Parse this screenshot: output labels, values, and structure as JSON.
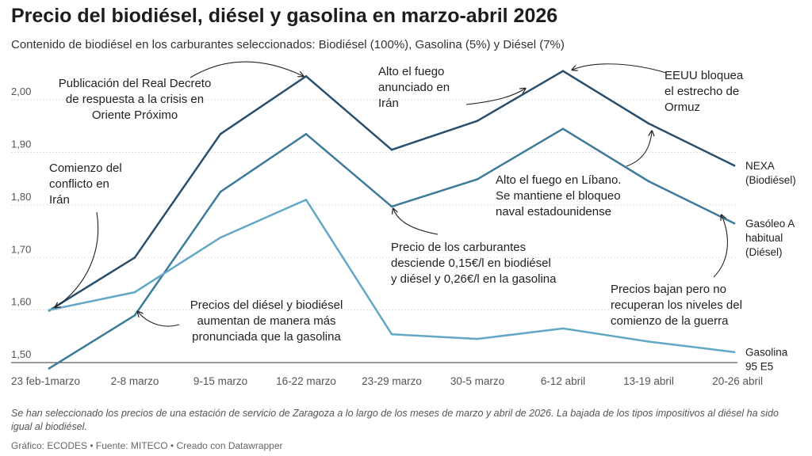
{
  "title": "Precio del biodiésel, diésel y gasolina en marzo-abril 2026",
  "subtitle": "Contenido de biodiésel en los carburantes seleccionados: Biodiésel (100%), Gasolina (5%) y Diésel (7%)",
  "note": "Se han seleccionado los precios de una estación de servicio de Zaragoza a lo largo de los meses de marzo y abril de 2026. La bajada de los tipos impositivos al diésel ha sido igual al biodiésel.",
  "footer": "Gráfico: ECODES • Fuente: MITECO • Creado con Datawrapper",
  "chart_data": {
    "type": "line",
    "categories": [
      "23 feb-1marzo",
      "2-8 marzo",
      "9-15 marzo",
      "16-22 marzo",
      "23-29 marzo",
      "30-5 marzo",
      "6-12 abril",
      "13-19 abril",
      "20-26 abril"
    ],
    "ylim": [
      1.5,
      2.05
    ],
    "yticks": [
      "1,50",
      "1,60",
      "1,70",
      "1,80",
      "1,90",
      "2,00"
    ],
    "grid": true,
    "series": [
      {
        "name": "NEXA (Biodiésel)",
        "label_lines": [
          "NEXA",
          "(Biodiésel)"
        ],
        "color": "#294f6d",
        "values": [
          1.599,
          1.7,
          1.935,
          2.045,
          1.905,
          1.96,
          2.055,
          1.955,
          1.875
        ]
      },
      {
        "name": "Gasóleo A habitual (Diésel)",
        "label_lines": [
          "Gasóleo A",
          "habitual",
          "(Diésel)"
        ],
        "color": "#3d7b9a",
        "values": [
          1.489,
          1.59,
          1.825,
          1.935,
          1.797,
          1.849,
          1.945,
          1.845,
          1.765
        ]
      },
      {
        "name": "Gasolina 95 E5",
        "label_lines": [
          "Gasolina",
          "95 E5"
        ],
        "color": "#62a8c6",
        "values": [
          1.6,
          1.634,
          1.738,
          1.81,
          1.554,
          1.545,
          1.565,
          1.54,
          1.52
        ]
      }
    ],
    "annotations": [
      {
        "id": "real-decreto",
        "lines": [
          "Publicación del Real Decreto",
          "de respuesta a la crisis en",
          "Oriente Próximo"
        ]
      },
      {
        "id": "comienzo-conflicto",
        "lines": [
          "Comienzo del",
          "conflicto en",
          "Irán"
        ]
      },
      {
        "id": "alto-fuego-iran",
        "lines": [
          "Alto el fuego",
          "anunciado en",
          "Irán"
        ]
      },
      {
        "id": "eeuu-ormuz",
        "lines": [
          "EEUU bloquea",
          "el estrecho de",
          "Ormuz"
        ]
      },
      {
        "id": "alto-fuego-libano",
        "lines": [
          "Alto el fuego en Líbano.",
          "Se mantiene el bloqueo",
          "naval estadounidense"
        ]
      },
      {
        "id": "precio-desciende",
        "lines": [
          "Precio de los carburantes",
          "desciende 0,15€/l en biodiésel",
          "y diésel y 0,26€/l en la gasolina"
        ]
      },
      {
        "id": "precios-bajan",
        "lines": [
          "Precios bajan pero no",
          "recuperan los niveles del",
          "comienzo de la guerra"
        ]
      },
      {
        "id": "precios-aumentan",
        "lines": [
          "Precios del diésel y biodiésel",
          "aumentan de manera más",
          "pronunciada que la gasolina"
        ]
      }
    ]
  }
}
